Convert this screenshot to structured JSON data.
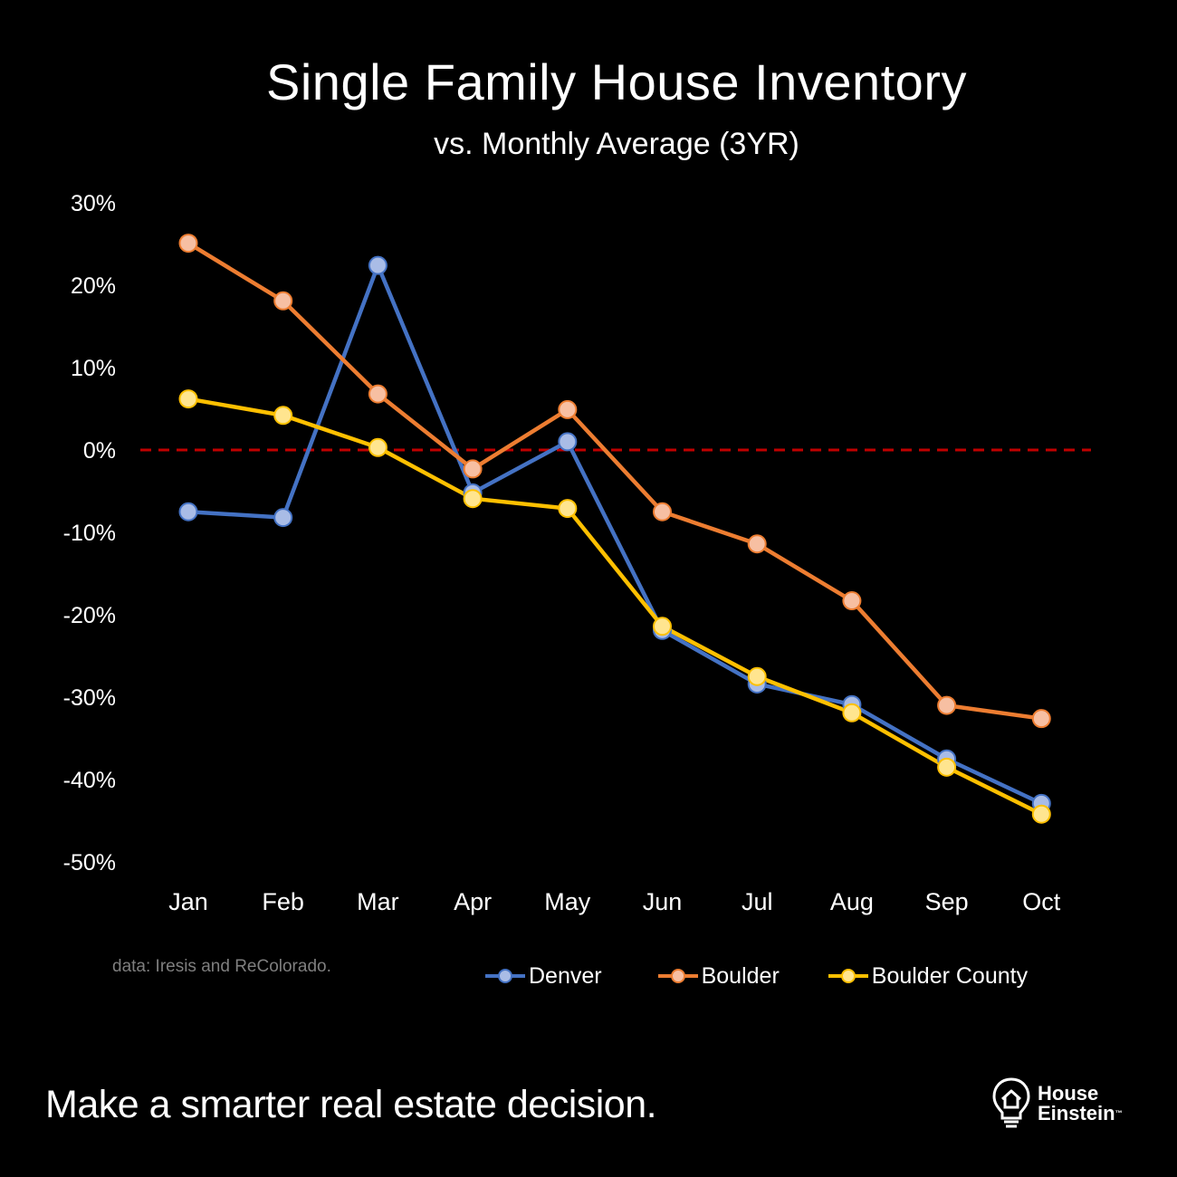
{
  "chart_data": {
    "type": "line",
    "title": "Single Family House Inventory",
    "subtitle": "vs. Monthly Average (3YR)",
    "categories": [
      "Jan",
      "Feb",
      "Mar",
      "Apr",
      "May",
      "Jun",
      "Jul",
      "Aug",
      "Sep",
      "Oct"
    ],
    "yticks": [
      "30%",
      "20%",
      "10%",
      "0%",
      "-10%",
      "-20%",
      "-30%",
      "-40%",
      "-50%"
    ],
    "ylim": [
      -50,
      30
    ],
    "reference_line": {
      "value": 0,
      "color": "#C00000",
      "style": "dashed"
    },
    "series": [
      {
        "name": "Denver",
        "color": "#4472C4",
        "marker": "#A9BCE6",
        "values": [
          -7.5,
          -8.2,
          22.4,
          -5.2,
          1.0,
          -21.9,
          -28.4,
          -30.9,
          -37.5,
          -42.9
        ]
      },
      {
        "name": "Boulder",
        "color": "#ED7D31",
        "marker": "#F7BFA2",
        "values": [
          25.1,
          18.1,
          6.8,
          -2.3,
          4.9,
          -7.5,
          -11.4,
          -18.3,
          -31.0,
          -32.6
        ]
      },
      {
        "name": "Boulder County",
        "color": "#FFC000",
        "marker": "#FFE58F",
        "values": [
          6.2,
          4.2,
          0.3,
          -5.9,
          -7.1,
          -21.4,
          -27.5,
          -31.9,
          -38.5,
          -44.2
        ]
      }
    ],
    "xlabel": "",
    "ylabel": "",
    "legend": "bottom-right",
    "grid": false
  },
  "source_note": "data: Iresis and ReColorado.",
  "tagline": "Make a smarter real estate decision.",
  "logo": {
    "line1": "House",
    "line2": "Einstein",
    "tm": "™"
  },
  "colors": {
    "background": "#000000",
    "text": "#FFFFFF",
    "source_text": "#7F7F7F"
  }
}
